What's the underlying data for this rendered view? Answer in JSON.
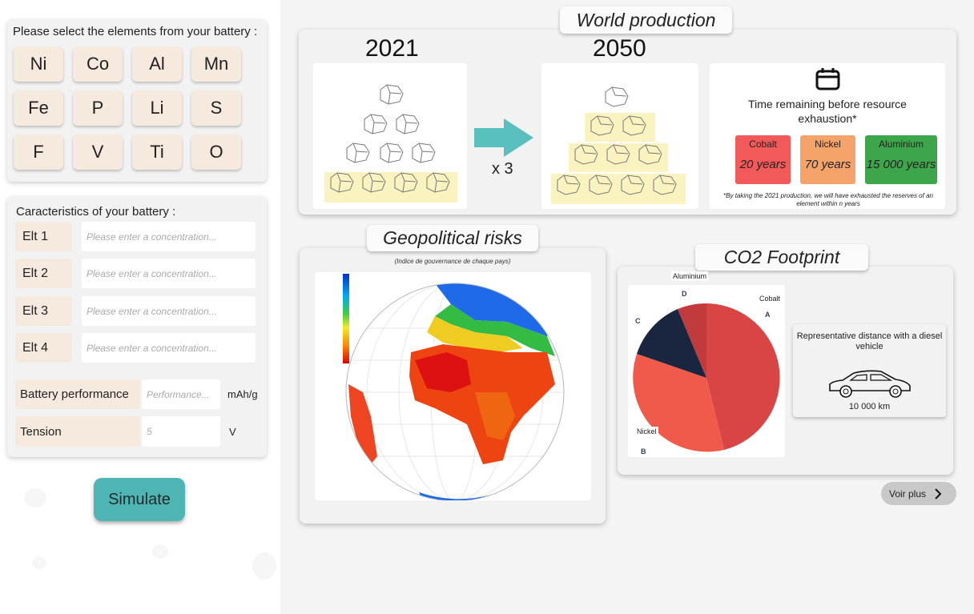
{
  "elements_card": {
    "title": "Please select the elements from your battery :",
    "elements": [
      "Ni",
      "Co",
      "Al",
      "Mn",
      "Fe",
      "P",
      "Li",
      "S",
      "F",
      "V",
      "Ti",
      "O"
    ]
  },
  "characteristics": {
    "title": "Caracteristics of your battery :",
    "elt_rows": [
      {
        "label": "Elt 1",
        "placeholder": "Please enter a concentration..."
      },
      {
        "label": "Elt 2",
        "placeholder": "Please enter a concentration..."
      },
      {
        "label": "Elt 3",
        "placeholder": "Please enter a concentration..."
      },
      {
        "label": "Elt 4",
        "placeholder": "Please enter a concentration..."
      }
    ],
    "performance": {
      "label": "Battery performance",
      "placeholder": "Performance...",
      "unit": "mAh/g"
    },
    "tension": {
      "label": "Tension",
      "value": "5",
      "unit": "V"
    }
  },
  "simulate_label": "Simulate",
  "world_production": {
    "title": "World production",
    "year_start": "2021",
    "year_end": "2050",
    "multiplier": "x 3",
    "time_remaining_title": "Time remaining before resource exhaustion*",
    "resources": [
      {
        "name": "Cobalt",
        "value": "20 years",
        "color": "#f25a5a"
      },
      {
        "name": "Nickel",
        "value": "70 years",
        "color": "#f5a26b"
      },
      {
        "name": "Aluminium",
        "value": "15 000 years",
        "color": "#3da64a"
      }
    ],
    "footnote": "*By taking the 2021 production, we will have exhausted the reserves of an element within n years",
    "icon": "calendar-icon"
  },
  "geopolitical": {
    "title": "Geopolitical risks",
    "caption": "(Indice de gouvernance de chaque pays)"
  },
  "co2": {
    "title": "CO2 Footprint",
    "pie": {
      "labels": {
        "cobalt": "Cobalt",
        "nickel": "Nickel",
        "aluminium": "Aluminium"
      },
      "letters": [
        "A",
        "B",
        "C",
        "D"
      ],
      "colors": {
        "A": "#d94544",
        "B": "#f05a4a",
        "C": "#1a2540",
        "D": "#c13a3c"
      }
    },
    "distance_title": "Representative distance with a diesel vehicle",
    "distance_value": "10 000 km"
  },
  "voir_plus": "Voir plus"
}
